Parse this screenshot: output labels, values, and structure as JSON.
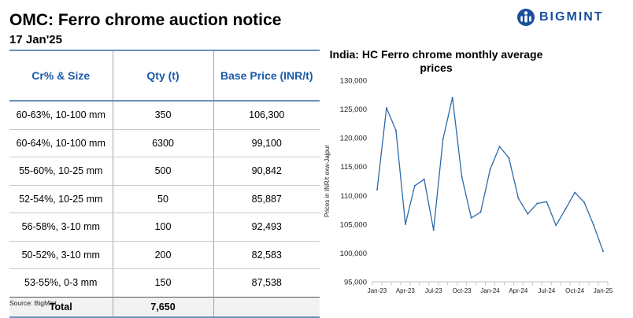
{
  "header": {
    "title": "OMC: Ferro chrome auction notice",
    "date": "17 Jan'25",
    "brand": "BIGMINT",
    "brand_color": "#1b4f9c"
  },
  "table": {
    "columns": [
      "Cr% & Size",
      "Qty (t)",
      "Base Price (INR/t)"
    ],
    "rows": [
      [
        "60-63%,  10-100 mm",
        "350",
        "106,300"
      ],
      [
        "60-64%,  10-100 mm",
        "6300",
        "99,100"
      ],
      [
        "55-60%,  10-25 mm",
        "500",
        "90,842"
      ],
      [
        "52-54%,  10-25 mm",
        "50",
        "85,887"
      ],
      [
        "56-58%,  3-10 mm",
        "100",
        "92,493"
      ],
      [
        "50-52%,  3-10 mm",
        "200",
        "82,583"
      ],
      [
        "53-55%,  0-3 mm",
        "150",
        "87,538"
      ]
    ],
    "total_label": "Total",
    "total_qty": "7,650",
    "total_price": ""
  },
  "source": "Source: BigMint",
  "chart_data": {
    "type": "line",
    "title": "India: HC Ferro chrome monthly average prices",
    "title_lines": [
      "India: HC Ferro chrome monthly average",
      "prices"
    ],
    "xlabel": "",
    "ylabel": "Prices in INR/t exw-Jajpur",
    "ylim": [
      95000,
      130000
    ],
    "yticks": [
      95000,
      100000,
      105000,
      110000,
      115000,
      120000,
      125000,
      130000
    ],
    "ytick_labels": [
      "95,000",
      "100,000",
      "105,000",
      "110,000",
      "115,000",
      "120,000",
      "125,000",
      "130,000"
    ],
    "x": [
      "Jan-23",
      "Feb-23",
      "Mar-23",
      "Apr-23",
      "May-23",
      "Jun-23",
      "Jul-23",
      "Aug-23",
      "Sep-23",
      "Oct-23",
      "Nov-23",
      "Dec-23",
      "Jan-24",
      "Feb-24",
      "Mar-24",
      "Apr-24",
      "May-24",
      "Jun-24",
      "Jul-24",
      "Aug-24",
      "Sep-24",
      "Oct-24",
      "Nov-24",
      "Dec-24",
      "Jan-25"
    ],
    "xtick_labels": [
      "Jan-23",
      "Apr-23",
      "Jul-23",
      "Oct-23",
      "Jan-24",
      "Apr-24",
      "Jul-24",
      "Oct-24",
      "Jan-25"
    ],
    "series": [
      {
        "name": "HC Ferro chrome",
        "color": "#2e6aa8",
        "values": [
          111000,
          125200,
          121300,
          105000,
          111700,
          112800,
          104000,
          119800,
          127000,
          113200,
          106100,
          107100,
          114500,
          118500,
          116500,
          109500,
          106800,
          108600,
          108900,
          104800,
          107600,
          110500,
          108800,
          104800,
          100300
        ]
      }
    ]
  }
}
